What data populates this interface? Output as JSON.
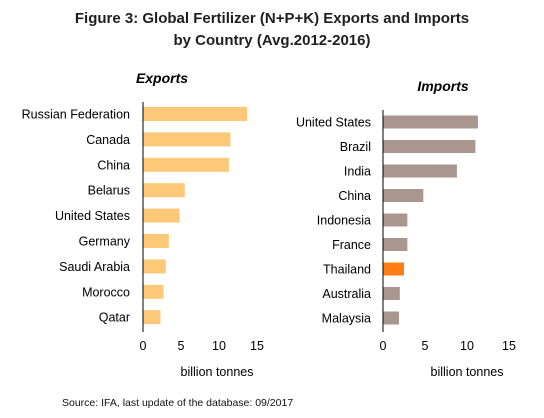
{
  "figure": {
    "title_line1": "Figure 3: Global Fertilizer (N+P+K) Exports and Imports",
    "title_line2": "by Country (Avg.2012-2016)",
    "source": "Source: IFA, last update of the database: 09/2017"
  },
  "colors": {
    "exports_bar": "#fdc877",
    "imports_bar": "#a8968f",
    "highlight_bar": "#ff7f16",
    "axis": "#000000"
  },
  "chart_data": [
    {
      "type": "bar",
      "orientation": "horizontal",
      "title": "Exports",
      "xlabel": "billion tonnes",
      "ylabel": "",
      "xlim": [
        0,
        15
      ],
      "xticks": [
        0,
        5,
        10,
        15
      ],
      "grid": false,
      "categories": [
        "Russian Federation",
        "Canada",
        "China",
        "Belarus",
        "United States",
        "Germany",
        "Saudi Arabia",
        "Morocco",
        "Qatar"
      ],
      "values": [
        13.7,
        11.5,
        11.3,
        5.5,
        4.8,
        3.4,
        3.0,
        2.7,
        2.3
      ]
    },
    {
      "type": "bar",
      "orientation": "horizontal",
      "title": "Imports",
      "xlabel": "billion tonnes",
      "ylabel": "",
      "xlim": [
        0,
        15
      ],
      "xticks": [
        0,
        5,
        10,
        15
      ],
      "grid": false,
      "categories": [
        "United States",
        "Brazil",
        "India",
        "China",
        "Indonesia",
        "France",
        "Thailand",
        "Australia",
        "Malaysia"
      ],
      "values": [
        11.3,
        11.0,
        8.8,
        4.8,
        2.9,
        2.9,
        2.5,
        2.0,
        1.9
      ],
      "highlight": "Thailand"
    }
  ]
}
